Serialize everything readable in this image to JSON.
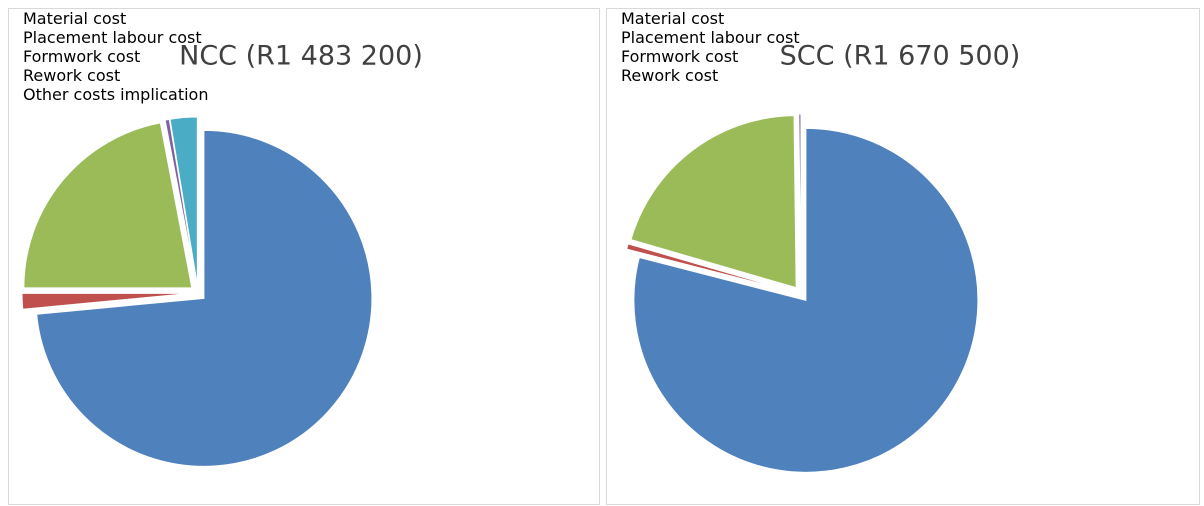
{
  "chart_data": [
    {
      "type": "pie",
      "title": "NCC (R1 483 200)",
      "categories": [
        "Material cost",
        "Placement labour cost",
        "Formwork cost",
        "Rework cost",
        "Other costs implication"
      ],
      "values": [
        73.5,
        1.5,
        22,
        0.4,
        2.6
      ],
      "colors": [
        "#4f81bd",
        "#c0504d",
        "#9bbb59",
        "#8064a2",
        "#4bacc6"
      ],
      "legend": "right"
    },
    {
      "type": "pie",
      "title": "SCC (R1 670 500)",
      "categories": [
        "Material cost",
        "Placement labour cost",
        "Formwork cost",
        "Rework cost"
      ],
      "values": [
        79,
        0.5,
        20.3,
        0.2
      ],
      "colors": [
        "#4f81bd",
        "#c0504d",
        "#9bbb59",
        "#8064a2"
      ],
      "legend": "right"
    }
  ]
}
